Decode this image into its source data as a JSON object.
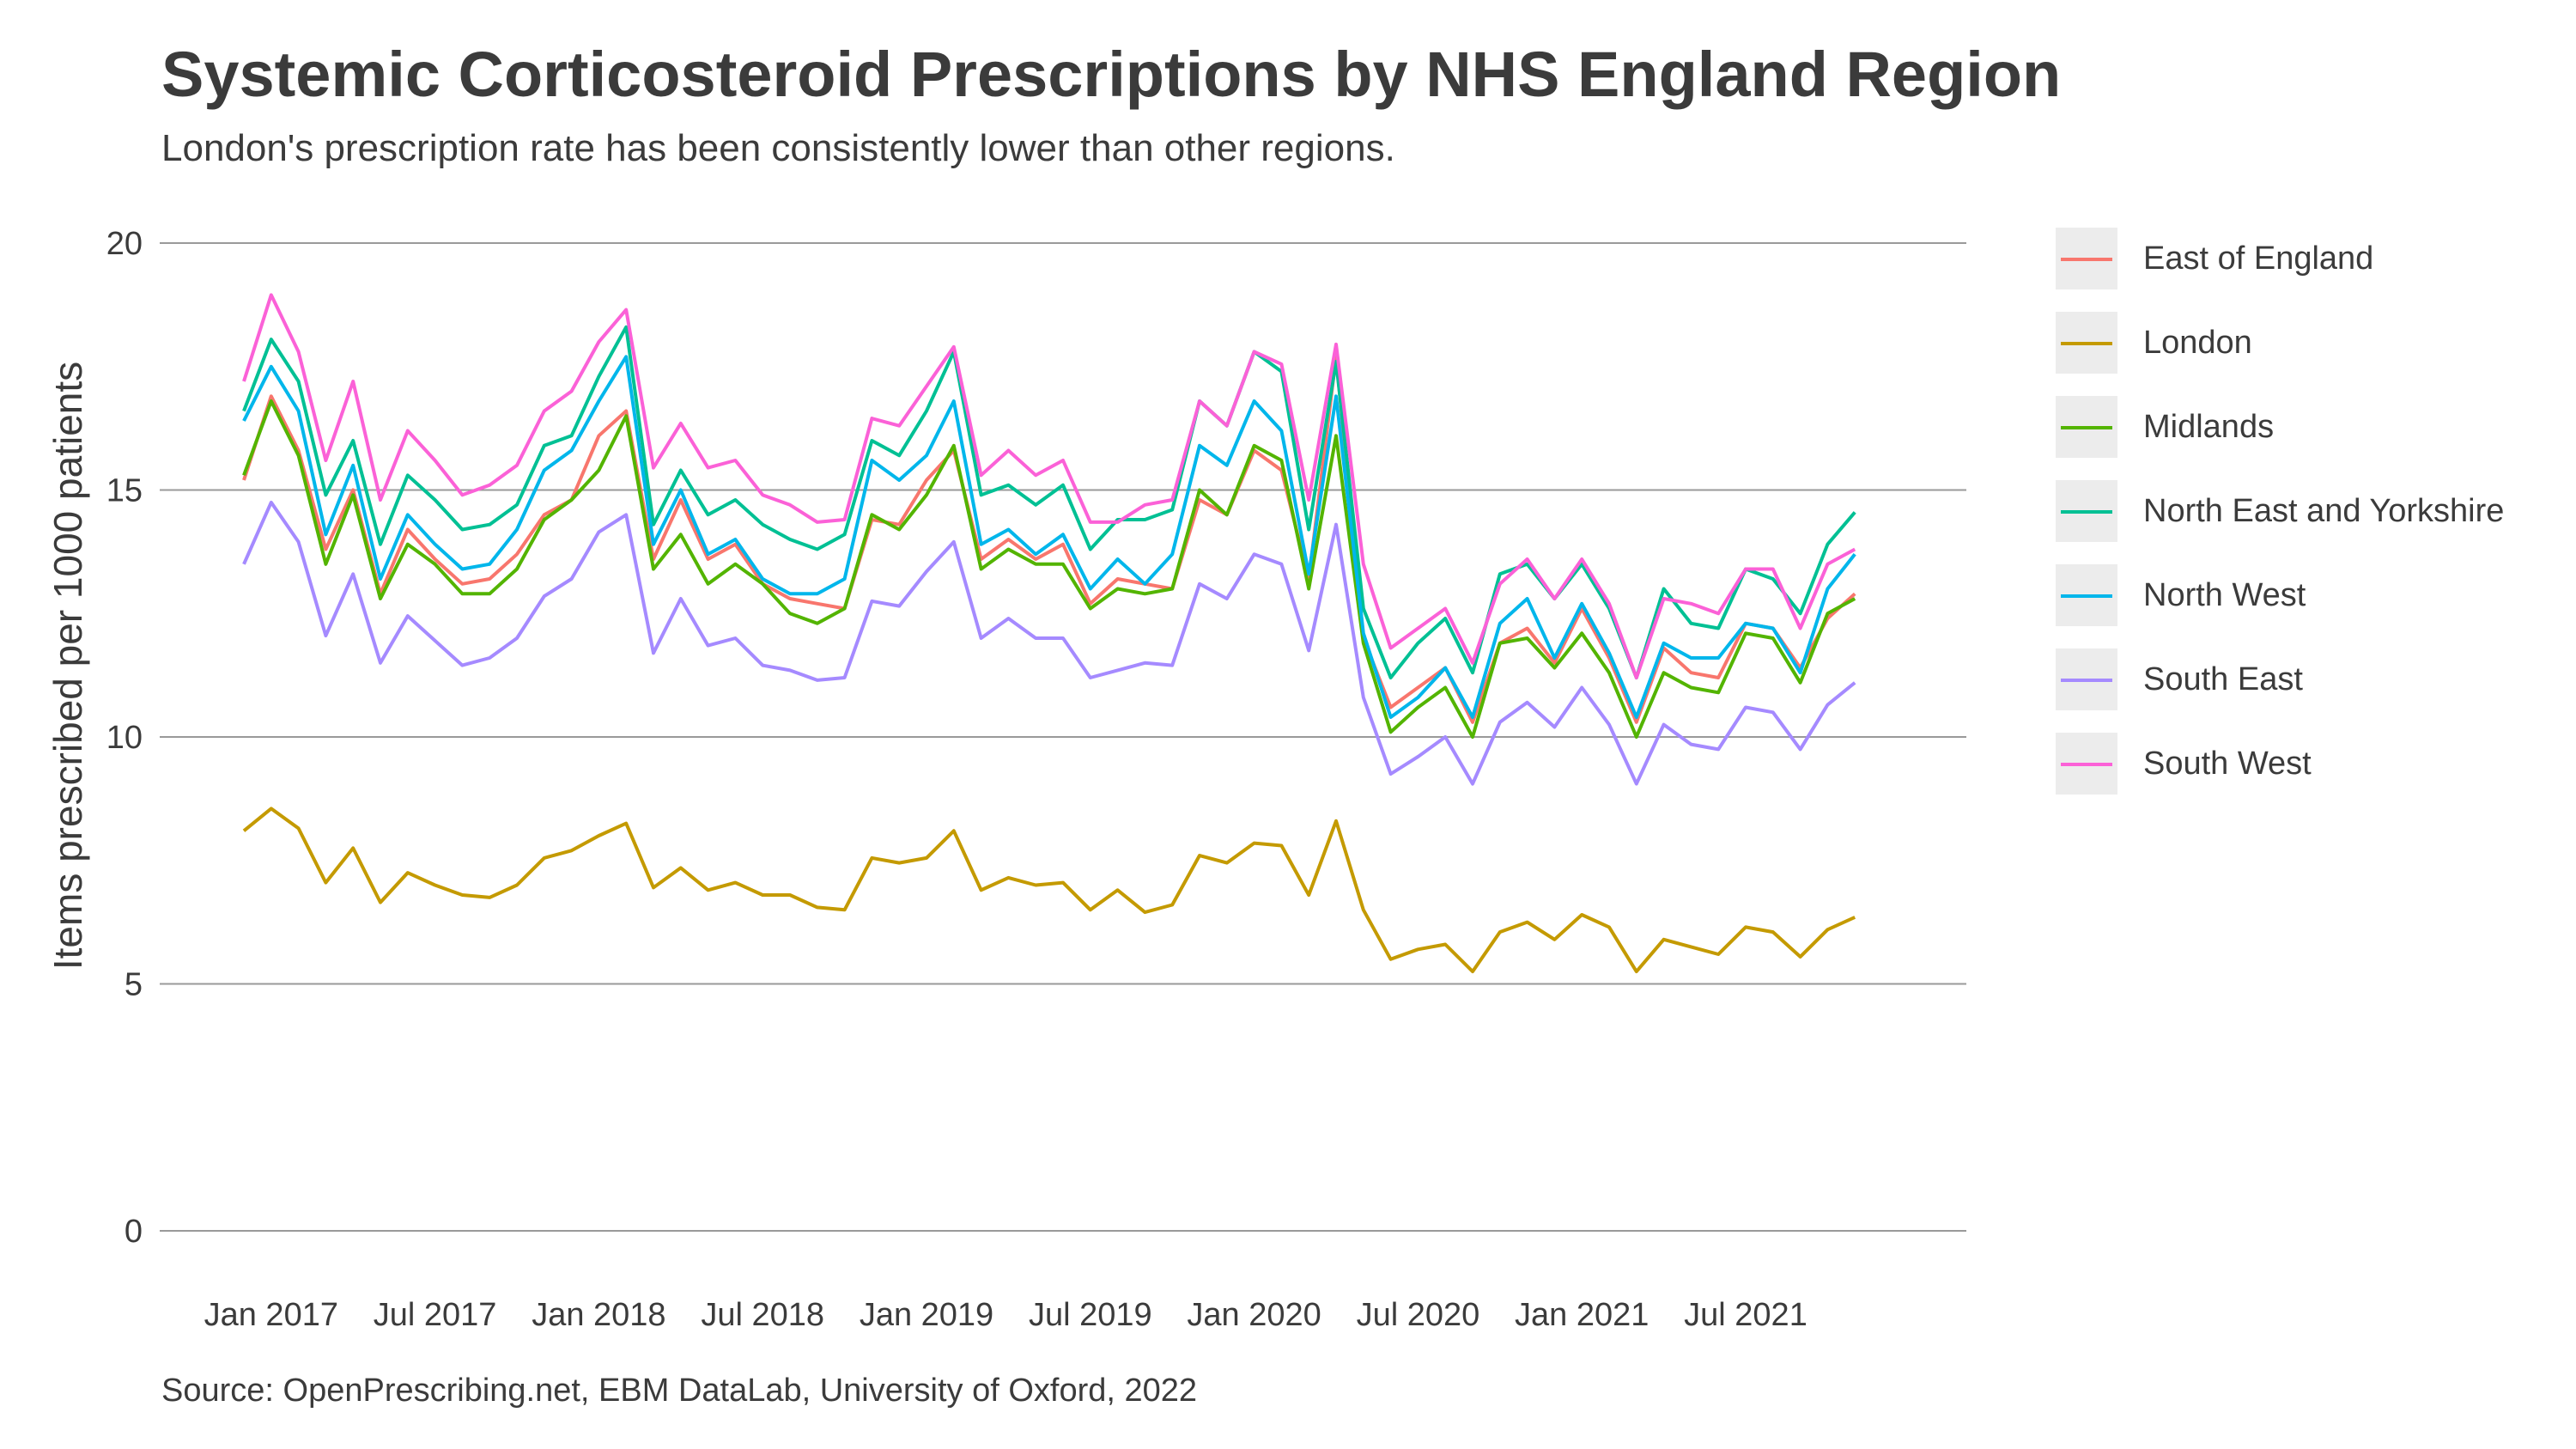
{
  "header": {
    "title": "Systemic Corticosteroid Prescriptions by NHS England Region",
    "subtitle": "London's prescription rate has been consistently lower than other regions."
  },
  "caption": "Source: OpenPrescribing.net, EBM DataLab, University of Oxford, 2022",
  "chart_data": {
    "type": "line",
    "ylabel": "Items prescribed per 1000 patients",
    "xlabel": "",
    "ylim": [
      0,
      20
    ],
    "y_ticks": [
      0,
      5,
      10,
      15,
      20
    ],
    "x_ticks": [
      {
        "label": "Jan 2017",
        "index": 1
      },
      {
        "label": "Jul 2017",
        "index": 7
      },
      {
        "label": "Jan 2018",
        "index": 13
      },
      {
        "label": "Jul 2018",
        "index": 19
      },
      {
        "label": "Jan 2019",
        "index": 25
      },
      {
        "label": "Jul 2019",
        "index": 31
      },
      {
        "label": "Jan 2020",
        "index": 37
      },
      {
        "label": "Jul 2020",
        "index": 43
      },
      {
        "label": "Jan 2021",
        "index": 49
      },
      {
        "label": "Jul 2021",
        "index": 55
      }
    ],
    "x": [
      "Dec 2016",
      "Jan 2017",
      "Feb 2017",
      "Mar 2017",
      "Apr 2017",
      "May 2017",
      "Jun 2017",
      "Jul 2017",
      "Aug 2017",
      "Sep 2017",
      "Oct 2017",
      "Nov 2017",
      "Dec 2017",
      "Jan 2018",
      "Feb 2018",
      "Mar 2018",
      "Apr 2018",
      "May 2018",
      "Jun 2018",
      "Jul 2018",
      "Aug 2018",
      "Sep 2018",
      "Oct 2018",
      "Nov 2018",
      "Dec 2018",
      "Jan 2019",
      "Feb 2019",
      "Mar 2019",
      "Apr 2019",
      "May 2019",
      "Jun 2019",
      "Jul 2019",
      "Aug 2019",
      "Sep 2019",
      "Oct 2019",
      "Nov 2019",
      "Dec 2019",
      "Jan 2020",
      "Feb 2020",
      "Mar 2020",
      "Apr 2020",
      "May 2020",
      "Jun 2020",
      "Jul 2020",
      "Aug 2020",
      "Sep 2020",
      "Oct 2020",
      "Nov 2020",
      "Dec 2020",
      "Jan 2021",
      "Feb 2021",
      "Mar 2021",
      "Apr 2021",
      "May 2021",
      "Jun 2021",
      "Jul 2021",
      "Aug 2021",
      "Sep 2021",
      "Oct 2021",
      "Nov 2021"
    ],
    "grid": true,
    "legend_position": "right",
    "series": [
      {
        "name": "East of England",
        "color": "#F8766D",
        "values": [
          15.2,
          16.9,
          15.8,
          13.8,
          15.0,
          12.9,
          14.2,
          13.6,
          13.1,
          13.2,
          13.7,
          14.5,
          14.8,
          16.1,
          16.6,
          13.6,
          14.8,
          13.6,
          13.9,
          13.1,
          12.8,
          12.7,
          12.6,
          14.4,
          14.3,
          15.2,
          15.8,
          13.6,
          14.0,
          13.6,
          13.9,
          12.7,
          13.2,
          13.1,
          13.0,
          14.8,
          14.5,
          15.8,
          15.4,
          13.2,
          17.7,
          12.0,
          10.6,
          11.0,
          11.4,
          10.3,
          11.9,
          12.2,
          11.5,
          12.6,
          11.6,
          10.3,
          11.8,
          11.3,
          11.2,
          12.3,
          12.2,
          11.4,
          12.4,
          12.9
        ]
      },
      {
        "name": "London",
        "color": "#C49A00",
        "values": [
          8.1,
          8.55,
          8.15,
          7.05,
          7.75,
          6.65,
          7.25,
          7.0,
          6.8,
          6.75,
          7.0,
          7.55,
          7.7,
          8.0,
          8.25,
          6.95,
          7.35,
          6.9,
          7.05,
          6.8,
          6.8,
          6.55,
          6.5,
          7.55,
          7.45,
          7.55,
          8.1,
          6.9,
          7.15,
          7.0,
          7.05,
          6.5,
          6.9,
          6.45,
          6.6,
          7.6,
          7.45,
          7.85,
          7.8,
          6.8,
          8.3,
          6.5,
          5.5,
          5.7,
          5.8,
          5.25,
          6.05,
          6.25,
          5.9,
          6.4,
          6.15,
          5.25,
          5.9,
          5.75,
          5.6,
          6.15,
          6.05,
          5.55,
          6.1,
          6.35
        ]
      },
      {
        "name": "Midlands",
        "color": "#53B400",
        "values": [
          15.3,
          16.8,
          15.7,
          13.5,
          14.9,
          12.8,
          13.9,
          13.5,
          12.9,
          12.9,
          13.4,
          14.4,
          14.8,
          15.4,
          16.5,
          13.4,
          14.1,
          13.1,
          13.5,
          13.1,
          12.5,
          12.3,
          12.6,
          14.5,
          14.2,
          14.9,
          15.9,
          13.4,
          13.8,
          13.5,
          13.5,
          12.6,
          13.0,
          12.9,
          13.0,
          15.0,
          14.5,
          15.9,
          15.6,
          13.0,
          16.1,
          11.9,
          10.1,
          10.6,
          11.0,
          10.0,
          11.9,
          12.0,
          11.4,
          12.1,
          11.3,
          10.0,
          11.3,
          11.0,
          10.9,
          12.1,
          12.0,
          11.1,
          12.5,
          12.8
        ]
      },
      {
        "name": "North East and Yorkshire",
        "color": "#00C094",
        "values": [
          16.6,
          18.05,
          17.2,
          14.9,
          16.0,
          13.9,
          15.3,
          14.8,
          14.2,
          14.3,
          14.7,
          15.9,
          16.1,
          17.3,
          18.3,
          14.3,
          15.4,
          14.5,
          14.8,
          14.3,
          14.0,
          13.8,
          14.1,
          16.0,
          15.7,
          16.6,
          17.8,
          14.9,
          15.1,
          14.7,
          15.1,
          13.8,
          14.4,
          14.4,
          14.6,
          16.8,
          16.3,
          17.8,
          17.4,
          14.2,
          17.6,
          12.6,
          11.2,
          11.9,
          12.4,
          11.3,
          13.3,
          13.5,
          12.8,
          13.5,
          12.6,
          11.2,
          13.0,
          12.3,
          12.2,
          13.4,
          13.2,
          12.5,
          13.9,
          14.55
        ]
      },
      {
        "name": "North West",
        "color": "#00B6EB",
        "values": [
          16.4,
          17.5,
          16.6,
          14.1,
          15.5,
          13.2,
          14.5,
          13.9,
          13.4,
          13.5,
          14.2,
          15.4,
          15.8,
          16.8,
          17.7,
          13.9,
          15.0,
          13.7,
          14.0,
          13.2,
          12.9,
          12.9,
          13.2,
          15.6,
          15.2,
          15.7,
          16.8,
          13.9,
          14.2,
          13.7,
          14.1,
          13.0,
          13.6,
          13.1,
          13.7,
          15.9,
          15.5,
          16.8,
          16.2,
          13.3,
          16.9,
          12.1,
          10.4,
          10.8,
          11.4,
          10.4,
          12.3,
          12.8,
          11.6,
          12.7,
          11.7,
          10.4,
          11.9,
          11.6,
          11.6,
          12.3,
          12.2,
          11.3,
          13.0,
          13.7
        ]
      },
      {
        "name": "South East",
        "color": "#A58AFF",
        "values": [
          13.5,
          14.75,
          13.95,
          12.05,
          13.3,
          11.5,
          12.45,
          11.95,
          11.45,
          11.6,
          12.0,
          12.85,
          13.2,
          14.15,
          14.5,
          11.7,
          12.8,
          11.85,
          12.0,
          11.45,
          11.35,
          11.15,
          11.2,
          12.75,
          12.65,
          13.35,
          13.95,
          12.0,
          12.4,
          12.0,
          12.0,
          11.2,
          11.35,
          11.5,
          11.45,
          13.1,
          12.8,
          13.7,
          13.5,
          11.75,
          14.3,
          10.8,
          9.25,
          9.6,
          10.0,
          9.05,
          10.3,
          10.7,
          10.2,
          11.0,
          10.25,
          9.05,
          10.25,
          9.85,
          9.75,
          10.6,
          10.5,
          9.75,
          10.65,
          11.1
        ]
      },
      {
        "name": "South West",
        "color": "#FB61D7",
        "values": [
          17.2,
          18.95,
          17.8,
          15.6,
          17.2,
          14.8,
          16.2,
          15.6,
          14.9,
          15.1,
          15.5,
          16.6,
          17.0,
          18.0,
          18.65,
          15.45,
          16.35,
          15.45,
          15.6,
          14.9,
          14.7,
          14.35,
          14.4,
          16.45,
          16.3,
          17.1,
          17.9,
          15.3,
          15.8,
          15.3,
          15.6,
          14.35,
          14.35,
          14.7,
          14.8,
          16.8,
          16.3,
          17.8,
          17.55,
          14.8,
          17.95,
          13.5,
          11.8,
          12.2,
          12.6,
          11.5,
          13.1,
          13.6,
          12.8,
          13.6,
          12.7,
          11.2,
          12.8,
          12.7,
          12.5,
          13.4,
          13.4,
          12.2,
          13.5,
          13.8
        ]
      }
    ]
  }
}
